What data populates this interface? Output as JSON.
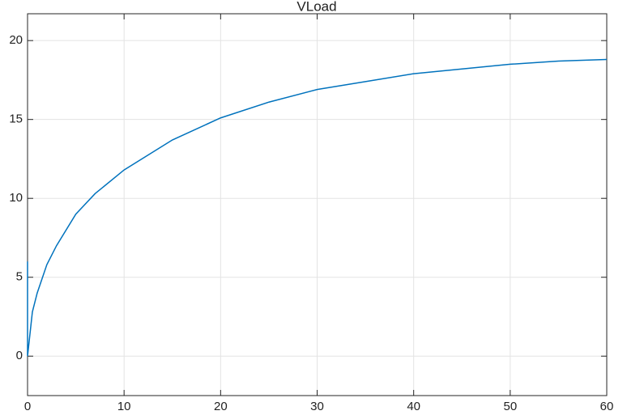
{
  "chart_data": {
    "type": "line",
    "title": "VLoad",
    "x": [
      0,
      0,
      0.5,
      1,
      2,
      3,
      5,
      7,
      10,
      15,
      20,
      25,
      30,
      35,
      40,
      45,
      50,
      55,
      60
    ],
    "series": [
      {
        "color": "#0072bd",
        "values": [
          6,
          0,
          2.8,
          4.0,
          5.8,
          7.0,
          9.0,
          10.3,
          11.8,
          13.7,
          15.1,
          16.1,
          16.9,
          17.4,
          17.9,
          18.2,
          18.5,
          18.7,
          18.8
        ]
      }
    ],
    "xlim": [
      0,
      60
    ],
    "xticks": [
      0,
      10,
      20,
      30,
      40,
      50,
      60
    ],
    "ylim": [
      -2.5,
      21.7
    ],
    "yticks": [
      0,
      5,
      10,
      15,
      20
    ],
    "grid": true
  }
}
